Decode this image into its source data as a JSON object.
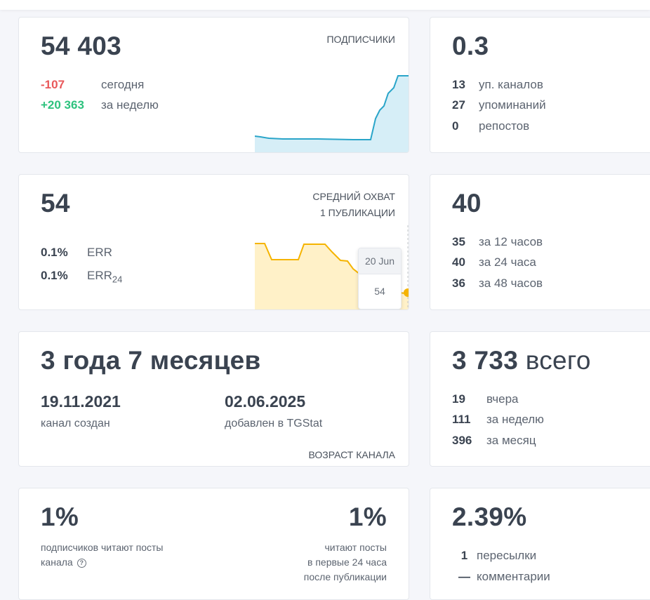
{
  "subscribers": {
    "value": "54 403",
    "label": "ПОДПИСЧИКИ",
    "today_value": "-107",
    "today_label": "сегодня",
    "week_value": "+20 363",
    "week_label": "за неделю",
    "colors": {
      "line": "#2aa5c9",
      "fill": "#d6eef7"
    }
  },
  "mentions": {
    "value": "0.3",
    "rows": [
      {
        "num": "13",
        "label": "уп. каналов"
      },
      {
        "num": "27",
        "label": "упоминаний"
      },
      {
        "num": "0",
        "label": "репостов"
      }
    ]
  },
  "reach": {
    "value": "54",
    "label_line1": "СРЕДНИЙ ОХВАТ",
    "label_line2": "1 ПУБЛИКАЦИИ",
    "err_value": "0.1%",
    "err_label": "ERR",
    "err24_value": "0.1%",
    "err24_label": "ERR",
    "err24_sub": "24",
    "tooltip_date": "20 Jun",
    "tooltip_value": "54",
    "colors": {
      "line": "#f5b400",
      "fill": "#fff1c8"
    }
  },
  "views": {
    "value": "40",
    "rows": [
      {
        "num": "35",
        "label": "за 12 часов"
      },
      {
        "num": "40",
        "label": "за 24 часа"
      },
      {
        "num": "36",
        "label": "за 48 часов"
      }
    ]
  },
  "age": {
    "value": "3 года 7 месяцев",
    "created_date": "19.11.2021",
    "created_label": "канал создан",
    "added_date": "02.06.2025",
    "added_label": "добавлен в TGStat",
    "label": "ВОЗРАСТ КАНАЛА"
  },
  "posts": {
    "value": "3 733",
    "value_suffix": "всего",
    "rows": [
      {
        "num": "19",
        "label": "вчера"
      },
      {
        "num": "111",
        "label": "за неделю"
      },
      {
        "num": "396",
        "label": "за месяц"
      }
    ]
  },
  "readers": {
    "left_value": "1%",
    "left_text_line1": "подписчиков читают посты",
    "left_text_line2": "канала",
    "right_value": "1%",
    "right_text_line1": "читают посты",
    "right_text_line2": "в первые 24 часа",
    "right_text_line3": "после публикации",
    "help_icon": "?"
  },
  "engagement": {
    "value": "2.39%",
    "rows": [
      {
        "num": "1",
        "label": "пересылки"
      },
      {
        "num": "—",
        "label": "комментарии"
      }
    ]
  }
}
